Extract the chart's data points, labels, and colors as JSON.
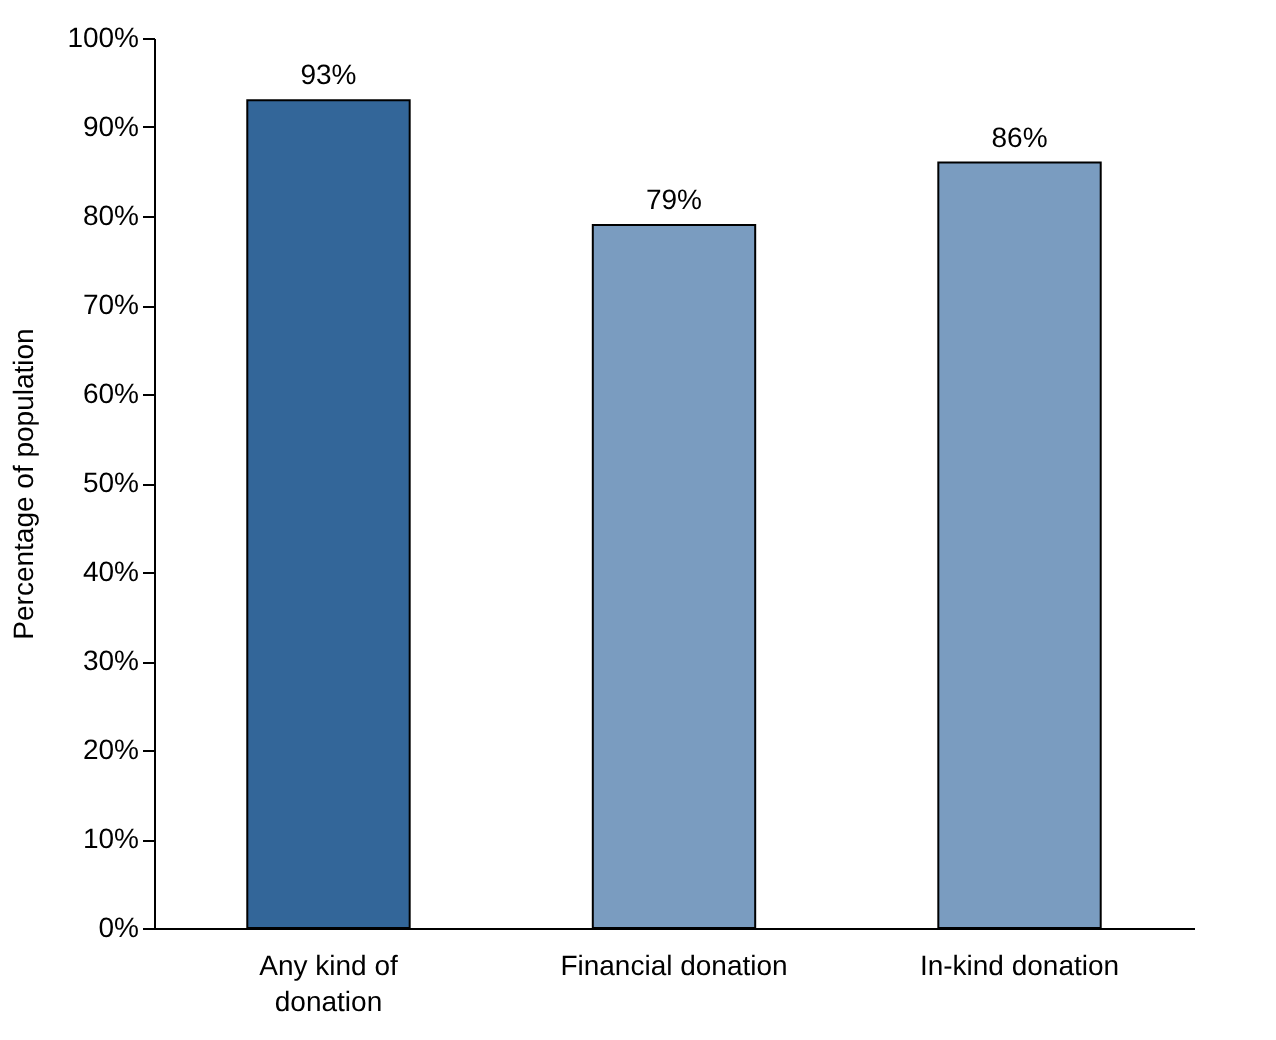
{
  "chart_data": {
    "type": "bar",
    "ylabel": "Percentage of population",
    "categories": [
      "Any kind of\ndonation",
      "Financial donation",
      "In-kind donation"
    ],
    "values": [
      93,
      79,
      86
    ],
    "colors": [
      "#336699",
      "#7a9cc0",
      "#7a9cc0"
    ],
    "value_labels": [
      "93%",
      "79%",
      "86%"
    ],
    "ylim": [
      0,
      100
    ],
    "yticks": [
      {
        "value": 0,
        "label": "0%"
      },
      {
        "value": 10,
        "label": "10%"
      },
      {
        "value": 20,
        "label": "20%"
      },
      {
        "value": 30,
        "label": "30%"
      },
      {
        "value": 40,
        "label": "40%"
      },
      {
        "value": 50,
        "label": "50%"
      },
      {
        "value": 60,
        "label": "60%"
      },
      {
        "value": 70,
        "label": "70%"
      },
      {
        "value": 80,
        "label": "80%"
      },
      {
        "value": 90,
        "label": "90%"
      },
      {
        "value": 100,
        "label": "100%"
      }
    ],
    "grid": false
  }
}
